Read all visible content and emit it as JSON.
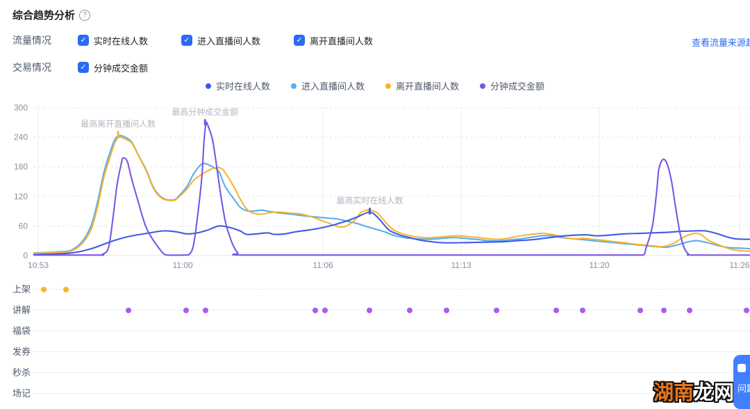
{
  "header": {
    "title": "综合趋势分析",
    "help_glyph": "?"
  },
  "filters": {
    "traffic_label": "流量情况",
    "trade_label": "交易情况",
    "traffic_options": [
      {
        "id": "online",
        "label": "实时在线人数",
        "checked": true
      },
      {
        "id": "enter",
        "label": "进入直播间人数",
        "checked": true
      },
      {
        "id": "leave",
        "label": "离开直播间人数",
        "checked": true
      }
    ],
    "trade_options": [
      {
        "id": "gmv",
        "label": "分钟成交金额",
        "checked": true
      }
    ],
    "link": "查看流量来源趋势",
    "checkbox_color": "#2a6bf2",
    "check_glyph": "✓"
  },
  "chart_data": {
    "type": "line",
    "title": "",
    "xlabel": "",
    "ylabel": "",
    "grid": true,
    "legend_position": "top-center",
    "y_axis": {
      "ticks": [
        0,
        60,
        120,
        180,
        240,
        300
      ],
      "range": [
        0,
        300
      ]
    },
    "x_axis": {
      "ticks": [
        {
          "label": "10:53",
          "pos": 0
        },
        {
          "label": "11:00",
          "pos": 6.8
        },
        {
          "label": "11:06",
          "pos": 13.4
        },
        {
          "label": "11:13",
          "pos": 19.9
        },
        {
          "label": "11:20",
          "pos": 26.4
        },
        {
          "label": "11:26",
          "pos": 33.0
        }
      ],
      "range": [
        -0.25,
        33.5
      ]
    },
    "series": [
      {
        "id": "online",
        "name": "实时在线人数",
        "color": "#3d5ae8",
        "points": [
          [
            -0.2,
            2
          ],
          [
            1.5,
            5
          ],
          [
            2.5,
            14
          ],
          [
            3.4,
            28
          ],
          [
            4.2,
            38
          ],
          [
            5.1,
            45
          ],
          [
            5.9,
            50
          ],
          [
            6.5,
            48
          ],
          [
            7,
            44
          ],
          [
            7.5,
            46
          ],
          [
            8,
            52
          ],
          [
            8.5,
            60
          ],
          [
            9,
            57
          ],
          [
            9.5,
            50
          ],
          [
            9.8,
            43
          ],
          [
            10.3,
            44
          ],
          [
            10.8,
            46
          ],
          [
            11.1,
            43
          ],
          [
            11.6,
            44
          ],
          [
            12.1,
            48
          ],
          [
            12.6,
            51
          ],
          [
            13.2,
            55
          ],
          [
            13.9,
            62
          ],
          [
            14.5,
            70
          ],
          [
            15,
            78
          ],
          [
            15.6,
            88
          ],
          [
            16,
            76
          ],
          [
            16.5,
            52
          ],
          [
            17,
            42
          ],
          [
            17.5,
            36
          ],
          [
            18,
            31
          ],
          [
            18.5,
            28
          ],
          [
            19,
            26
          ],
          [
            19.9,
            26
          ],
          [
            20.9,
            27
          ],
          [
            21.9,
            28
          ],
          [
            22.5,
            30
          ],
          [
            23.2,
            32
          ],
          [
            24,
            36
          ],
          [
            24.8,
            40
          ],
          [
            25.7,
            42
          ],
          [
            26.3,
            40
          ],
          [
            27,
            42
          ],
          [
            27.6,
            44
          ],
          [
            28.3,
            45
          ],
          [
            28.9,
            46
          ],
          [
            29.6,
            47
          ],
          [
            30.2,
            49
          ],
          [
            30.9,
            50
          ],
          [
            31.4,
            50
          ],
          [
            31.9,
            45
          ],
          [
            32.4,
            38
          ],
          [
            32.8,
            34
          ],
          [
            33.5,
            33
          ]
        ]
      },
      {
        "id": "enter",
        "name": "进入直播间人数",
        "color": "#55aef2",
        "points": [
          [
            -0.2,
            5
          ],
          [
            1.1,
            8
          ],
          [
            1.6,
            12
          ],
          [
            2.1,
            30
          ],
          [
            2.5,
            62
          ],
          [
            2.8,
            110
          ],
          [
            3.1,
            170
          ],
          [
            3.4,
            212
          ],
          [
            3.6,
            235
          ],
          [
            3.8,
            243
          ],
          [
            4.1,
            240
          ],
          [
            4.4,
            230
          ],
          [
            4.7,
            205
          ],
          [
            5.1,
            172
          ],
          [
            5.4,
            140
          ],
          [
            5.7,
            122
          ],
          [
            6,
            114
          ],
          [
            6.4,
            113
          ],
          [
            6.6,
            120
          ],
          [
            7,
            140
          ],
          [
            7.3,
            165
          ],
          [
            7.6,
            182
          ],
          [
            7.8,
            187
          ],
          [
            8.2,
            180
          ],
          [
            8.5,
            170
          ],
          [
            8.8,
            140
          ],
          [
            9.2,
            115
          ],
          [
            9.5,
            98
          ],
          [
            9.8,
            91
          ],
          [
            10.1,
            90
          ],
          [
            10.5,
            92
          ],
          [
            10.8,
            90
          ],
          [
            11.1,
            88
          ],
          [
            11.4,
            86
          ],
          [
            11.9,
            84
          ],
          [
            12.6,
            80
          ],
          [
            13.1,
            78
          ],
          [
            13.6,
            76
          ],
          [
            14.1,
            74
          ],
          [
            14.5,
            70
          ],
          [
            15,
            65
          ],
          [
            15.5,
            58
          ],
          [
            16,
            52
          ],
          [
            16.3,
            48
          ],
          [
            16.8,
            40
          ],
          [
            17.3,
            36
          ],
          [
            17.8,
            34
          ],
          [
            18.3,
            33
          ],
          [
            18.8,
            34
          ],
          [
            19.3,
            36
          ],
          [
            19.8,
            36
          ],
          [
            20.3,
            34
          ],
          [
            20.8,
            32
          ],
          [
            21.2,
            30
          ],
          [
            21.7,
            30
          ],
          [
            22.2,
            32
          ],
          [
            22.7,
            34
          ],
          [
            23.2,
            37
          ],
          [
            23.7,
            40
          ],
          [
            24.2,
            40
          ],
          [
            24.7,
            36
          ],
          [
            25.2,
            34
          ],
          [
            25.7,
            32
          ],
          [
            26.1,
            30
          ],
          [
            26.6,
            28
          ],
          [
            27.1,
            26
          ],
          [
            27.6,
            24
          ],
          [
            28.1,
            22
          ],
          [
            28.6,
            20
          ],
          [
            29.1,
            18
          ],
          [
            29.6,
            17
          ],
          [
            30.1,
            22
          ],
          [
            30.6,
            28
          ],
          [
            31,
            30
          ],
          [
            31.5,
            26
          ],
          [
            32,
            20
          ],
          [
            32.5,
            16
          ],
          [
            33,
            15
          ],
          [
            33.5,
            14
          ]
        ]
      },
      {
        "id": "leave",
        "name": "离开直播间人数",
        "color": "#f7b52c",
        "points": [
          [
            -0.2,
            4
          ],
          [
            1.1,
            7
          ],
          [
            1.6,
            10
          ],
          [
            2.1,
            26
          ],
          [
            2.5,
            54
          ],
          [
            2.8,
            100
          ],
          [
            3.1,
            160
          ],
          [
            3.4,
            202
          ],
          [
            3.6,
            228
          ],
          [
            3.8,
            240
          ],
          [
            4.1,
            236
          ],
          [
            4.4,
            228
          ],
          [
            4.7,
            204
          ],
          [
            5.1,
            170
          ],
          [
            5.4,
            138
          ],
          [
            5.7,
            120
          ],
          [
            6,
            113
          ],
          [
            6.4,
            112
          ],
          [
            6.6,
            118
          ],
          [
            7,
            135
          ],
          [
            7.3,
            152
          ],
          [
            7.7,
            165
          ],
          [
            8,
            172
          ],
          [
            8.3,
            178
          ],
          [
            8.6,
            177
          ],
          [
            8.8,
            168
          ],
          [
            9.2,
            140
          ],
          [
            9.5,
            115
          ],
          [
            9.8,
            95
          ],
          [
            10.1,
            86
          ],
          [
            10.5,
            84
          ],
          [
            10.8,
            86
          ],
          [
            11.1,
            88
          ],
          [
            11.4,
            88
          ],
          [
            11.9,
            86
          ],
          [
            12.4,
            84
          ],
          [
            12.9,
            78
          ],
          [
            13.4,
            70
          ],
          [
            13.9,
            62
          ],
          [
            14.2,
            58
          ],
          [
            14.5,
            60
          ],
          [
            14.9,
            72
          ],
          [
            15.2,
            88
          ],
          [
            15.5,
            92
          ],
          [
            15.9,
            88
          ],
          [
            16.2,
            75
          ],
          [
            16.5,
            60
          ],
          [
            16.8,
            50
          ],
          [
            17.3,
            42
          ],
          [
            17.8,
            38
          ],
          [
            18.3,
            36
          ],
          [
            18.8,
            37
          ],
          [
            19.3,
            39
          ],
          [
            19.8,
            40
          ],
          [
            20.3,
            38
          ],
          [
            20.8,
            36
          ],
          [
            21.2,
            34
          ],
          [
            21.7,
            33
          ],
          [
            22.2,
            36
          ],
          [
            22.7,
            40
          ],
          [
            23.2,
            43
          ],
          [
            23.7,
            45
          ],
          [
            24,
            44
          ],
          [
            24.5,
            40
          ],
          [
            24.8,
            36
          ],
          [
            25.2,
            34
          ],
          [
            25.7,
            35
          ],
          [
            26.1,
            33
          ],
          [
            26.6,
            31
          ],
          [
            27.1,
            28
          ],
          [
            27.6,
            26
          ],
          [
            28.1,
            23
          ],
          [
            28.6,
            21
          ],
          [
            29.1,
            19
          ],
          [
            29.4,
            18
          ],
          [
            29.9,
            25
          ],
          [
            30.4,
            38
          ],
          [
            30.9,
            45
          ],
          [
            31.2,
            42
          ],
          [
            31.5,
            32
          ],
          [
            32,
            22
          ],
          [
            32.5,
            14
          ],
          [
            33,
            10
          ],
          [
            33.5,
            9
          ]
        ]
      },
      {
        "id": "gmv",
        "name": "分钟成交金额",
        "color": "#7a55e6",
        "points": [
          [
            -0.2,
            1
          ],
          [
            2.8,
            1
          ],
          [
            3,
            2
          ],
          [
            3.3,
            15
          ],
          [
            3.5,
            70
          ],
          [
            3.7,
            140
          ],
          [
            3.9,
            185
          ],
          [
            4,
            198
          ],
          [
            4.2,
            190
          ],
          [
            4.4,
            155
          ],
          [
            4.7,
            110
          ],
          [
            4.9,
            80
          ],
          [
            5.1,
            55
          ],
          [
            5.4,
            32
          ],
          [
            5.7,
            14
          ],
          [
            5.9,
            4
          ],
          [
            6.1,
            1
          ],
          [
            6.9,
            1
          ],
          [
            7.1,
            2
          ],
          [
            7.3,
            20
          ],
          [
            7.5,
            80
          ],
          [
            7.7,
            160
          ],
          [
            7.8,
            230
          ],
          [
            7.9,
            268
          ],
          [
            8,
            262
          ],
          [
            8.2,
            235
          ],
          [
            8.4,
            180
          ],
          [
            8.6,
            120
          ],
          [
            8.8,
            70
          ],
          [
            9,
            40
          ],
          [
            9.2,
            18
          ],
          [
            9.4,
            5
          ],
          [
            9.6,
            1
          ],
          [
            15,
            1
          ],
          [
            20,
            1
          ],
          [
            26,
            1
          ],
          [
            28.2,
            1
          ],
          [
            28.5,
            2
          ],
          [
            28.6,
            15
          ],
          [
            28.9,
            60
          ],
          [
            29.1,
            130
          ],
          [
            29.2,
            175
          ],
          [
            29.4,
            195
          ],
          [
            29.6,
            185
          ],
          [
            29.8,
            150
          ],
          [
            30,
            95
          ],
          [
            30.2,
            45
          ],
          [
            30.4,
            15
          ],
          [
            30.6,
            3
          ],
          [
            30.8,
            1
          ],
          [
            33.5,
            1
          ]
        ]
      }
    ],
    "annotations": [
      {
        "series": "leave",
        "text": "最高离开直播间人数",
        "t": 3.76,
        "v": 246
      },
      {
        "series": "gmv",
        "text": "最高分钟成交金额",
        "t": 7.85,
        "v": 270
      },
      {
        "series": "online",
        "text": "最高实时在线人数",
        "t": 15.6,
        "v": 90
      }
    ]
  },
  "event_rows": [
    {
      "id": "listed",
      "label": "上架",
      "color": "#f7b52c",
      "dots": [
        0.26,
        1.31
      ]
    },
    {
      "id": "explain",
      "label": "讲解",
      "color": "#ae5beb",
      "dots": [
        4.25,
        6.96,
        7.88,
        13.04,
        13.5,
        15.59,
        17.48,
        19.22,
        21.57,
        24.38,
        25.62,
        28.33,
        29.44,
        30.65,
        33.33
      ]
    },
    {
      "id": "luckybag",
      "label": "福袋",
      "color": "#ae5beb",
      "dots": []
    },
    {
      "id": "coupon",
      "label": "发券",
      "color": "#ae5beb",
      "dots": []
    },
    {
      "id": "flashsale",
      "label": "秒杀",
      "color": "#ae5beb",
      "dots": []
    },
    {
      "id": "scenenote",
      "label": "场记",
      "color": "#ae5beb",
      "dots": []
    }
  ],
  "watermark": {
    "part1": "湖南",
    "part2": "龙网"
  },
  "floating_button": {
    "text": "问题",
    "color": "#4080ff"
  },
  "colors": {
    "axis_text": "#86909c",
    "grid_dashed": "#e2e5ea",
    "grid_vertical": "#eceef2",
    "axis_line": "#e5e6eb",
    "annotation_text": "#b2b8c2"
  }
}
